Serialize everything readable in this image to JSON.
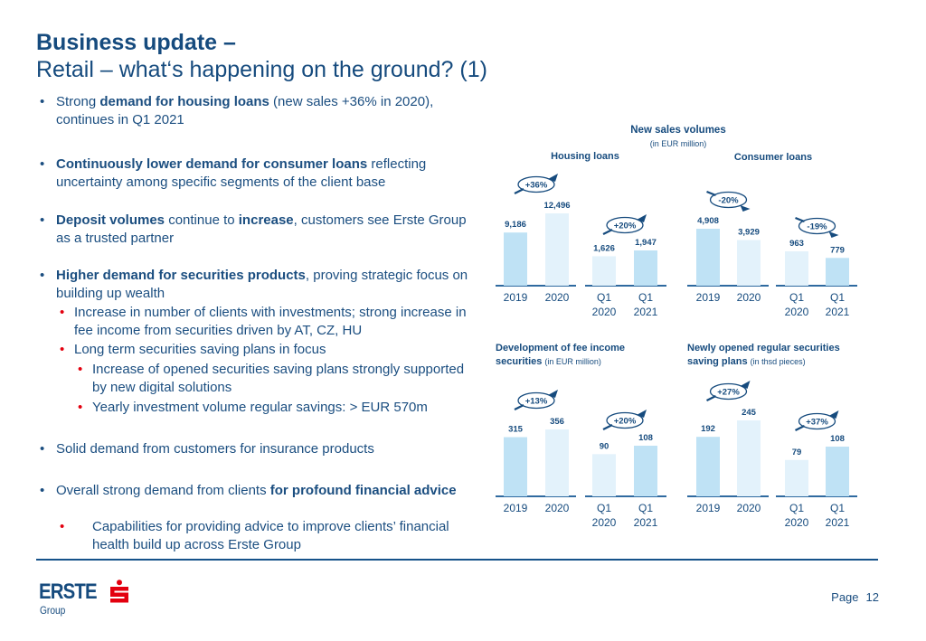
{
  "header": {
    "title_line1": "Business update –",
    "title_line2": "Retail – what‘s happening on the ground? (1)"
  },
  "bullets": [
    {
      "level": 1,
      "parts": [
        {
          "t": "Strong "
        },
        {
          "t": "demand for housing loans",
          "b": true
        },
        {
          "t": " (new sales +36% in 2020), continues in Q1 2021"
        }
      ]
    },
    {
      "level": 1,
      "parts": [
        {
          "t": "Continuously lower demand for consumer loans",
          "b": true
        },
        {
          "t": " reflecting uncertainty among specific segments of the client base"
        }
      ]
    },
    {
      "level": 1,
      "parts": [
        {
          "t": "Deposit volumes",
          "b": true
        },
        {
          "t": " continue to "
        },
        {
          "t": "increase",
          "b": true
        },
        {
          "t": ", customers see Erste Group as a trusted partner"
        }
      ]
    },
    {
      "level": 1,
      "parts": [
        {
          "t": "Higher demand for securities products",
          "b": true
        },
        {
          "t": ", proving strategic focus on building up wealth"
        }
      ]
    },
    {
      "level": 2,
      "parts": [
        {
          "t": "Increase in number of clients with investments; strong increase in fee income from securities driven by AT, CZ, HU"
        }
      ]
    },
    {
      "level": 2,
      "parts": [
        {
          "t": "Long term securities saving plans in focus"
        }
      ]
    },
    {
      "level": 3,
      "parts": [
        {
          "t": "Increase of opened securities saving plans strongly supported by new digital solutions"
        }
      ]
    },
    {
      "level": 3,
      "parts": [
        {
          "t": "Yearly investment volume regular savings: > EUR 570m"
        }
      ]
    },
    {
      "level": 1,
      "parts": [
        {
          "t": "Solid demand from customers for insurance products"
        }
      ]
    },
    {
      "level": 1,
      "parts": [
        {
          "t": "Overall strong demand from clients "
        },
        {
          "t": "for profound financial advice",
          "b": true
        }
      ]
    },
    {
      "level": "2w",
      "parts": [
        {
          "t": "Capabilities for providing advice to improve clients’ financial health build up across Erste Group"
        }
      ]
    }
  ],
  "bullet_char": "•",
  "sections": {
    "new_sales_title": "New sales volumes",
    "new_sales_unit": "(in EUR million)",
    "fee_title_bold_1": "Development of fee income",
    "fee_title_bold_2": "securities",
    "fee_unit": "(in EUR million)",
    "plans_title_bold_1": "Newly opened regular securities",
    "plans_title_bold_2": "saving plans",
    "plans_unit": "(in thsd pieces)"
  },
  "colors": {
    "bar_dark": "#bfe2f5",
    "bar_light": "#e3f2fb",
    "navy": "#164b7e",
    "axis": "#2f6aa0",
    "brand_red": "#e3000f"
  },
  "chart_data": [
    {
      "type": "bar",
      "title": "Housing loans",
      "unit": "EUR million",
      "groups": [
        {
          "categories": [
            "2019",
            "2020"
          ],
          "values": [
            9186,
            12496
          ],
          "labels": [
            "9,186",
            "12,496"
          ],
          "change": "+36%",
          "direction": "up"
        },
        {
          "categories": [
            "Q1\n2020",
            "Q1\n2021"
          ],
          "values": [
            1626,
            1947
          ],
          "labels": [
            "1,626",
            "1,947"
          ],
          "change": "+20%",
          "direction": "up"
        }
      ]
    },
    {
      "type": "bar",
      "title": "Consumer loans",
      "unit": "EUR million",
      "groups": [
        {
          "categories": [
            "2019",
            "2020"
          ],
          "values": [
            4908,
            3929
          ],
          "labels": [
            "4,908",
            "3,929"
          ],
          "change": "-20%",
          "direction": "down"
        },
        {
          "categories": [
            "Q1\n2020",
            "Q1\n2021"
          ],
          "values": [
            963,
            779
          ],
          "labels": [
            "963",
            "779"
          ],
          "change": "-19%",
          "direction": "down"
        }
      ]
    },
    {
      "type": "bar",
      "title": "Development of fee income securities",
      "unit": "EUR million",
      "groups": [
        {
          "categories": [
            "2019",
            "2020"
          ],
          "values": [
            315,
            356
          ],
          "labels": [
            "315",
            "356"
          ],
          "change": "+13%",
          "direction": "up"
        },
        {
          "categories": [
            "Q1\n2020",
            "Q1\n2021"
          ],
          "values": [
            90,
            108
          ],
          "labels": [
            "90",
            "108"
          ],
          "change": "+20%",
          "direction": "up"
        }
      ]
    },
    {
      "type": "bar",
      "title": "Newly opened regular securities saving plans",
      "unit": "thsd pieces",
      "groups": [
        {
          "categories": [
            "2019",
            "2020"
          ],
          "values": [
            192,
            245
          ],
          "labels": [
            "192",
            "245"
          ],
          "change": "+27%",
          "direction": "up"
        },
        {
          "categories": [
            "Q1\n2020",
            "Q1\n2021"
          ],
          "values": [
            79,
            108
          ],
          "labels": [
            "79",
            "108"
          ],
          "change": "+37%",
          "direction": "up"
        }
      ]
    }
  ],
  "footer": {
    "logo_text": "ERSTE",
    "logo_sub": "Group",
    "page_label": "Page",
    "page_number": "12"
  }
}
